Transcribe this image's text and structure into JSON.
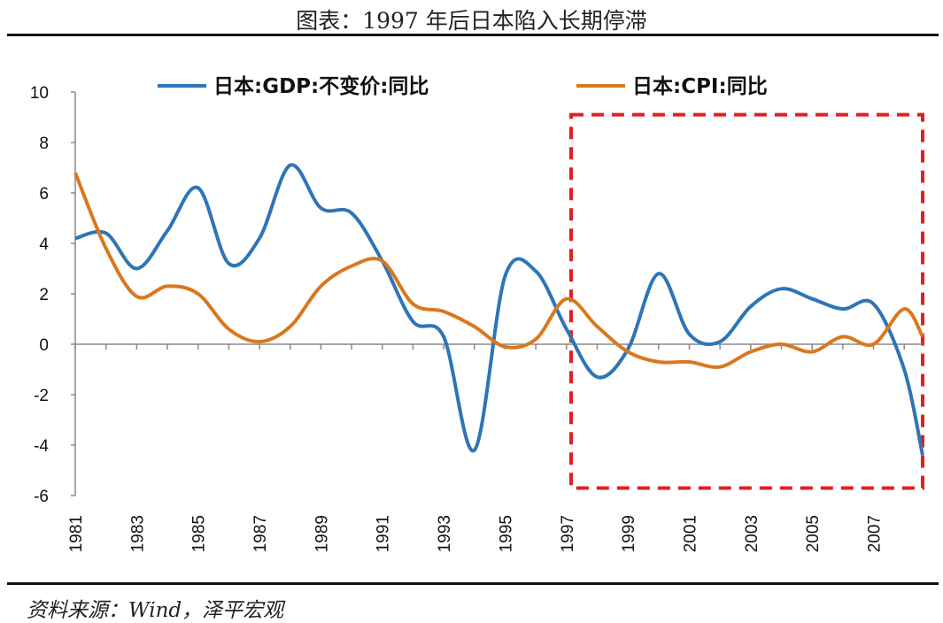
{
  "header": {
    "title": "图表：1997 年后日本陷入长期停滞"
  },
  "footer": {
    "source": "资料来源：Wind，泽平宏观"
  },
  "chart_data": {
    "type": "line",
    "x": [
      1981,
      1982,
      1983,
      1984,
      1985,
      1986,
      1987,
      1988,
      1989,
      1990,
      1991,
      1992,
      1993,
      1994,
      1995,
      1996,
      1997,
      1998,
      1999,
      2000,
      2001,
      2002,
      2003,
      2004,
      2005,
      2006,
      2007,
      2008,
      2008.6
    ],
    "x_tick_labels": [
      "1981",
      "1983",
      "1985",
      "1987",
      "1989",
      "1991",
      "1993",
      "1995",
      "1997",
      "1999",
      "2001",
      "2003",
      "2005",
      "2007"
    ],
    "y_tick_labels": [
      "10",
      "8",
      "6",
      "4",
      "2",
      "0",
      "-2",
      "-4",
      "-6"
    ],
    "ylim": [
      -6,
      10
    ],
    "series": [
      {
        "name": "日本:GDP:不变价:同比",
        "color": "#2E75B6",
        "values": [
          4.2,
          4.4,
          3.0,
          4.5,
          6.2,
          3.2,
          4.2,
          7.1,
          5.4,
          5.2,
          3.3,
          0.9,
          0.3,
          -4.2,
          2.7,
          2.9,
          0.6,
          -1.3,
          -0.2,
          2.8,
          0.4,
          0.1,
          1.5,
          2.2,
          1.8,
          1.4,
          1.6,
          -1.0,
          -4.4
        ]
      },
      {
        "name": "日本:CPI:同比",
        "color": "#D9781E",
        "values": [
          6.8,
          3.8,
          1.9,
          2.3,
          2.0,
          0.6,
          0.1,
          0.7,
          2.3,
          3.1,
          3.3,
          1.6,
          1.3,
          0.7,
          -0.1,
          0.2,
          1.8,
          0.7,
          -0.3,
          -0.7,
          -0.7,
          -0.9,
          -0.3,
          0.0,
          -0.3,
          0.3,
          0.0,
          1.4,
          0.3
        ]
      }
    ],
    "highlight": {
      "x_start": 1997.15,
      "x_end": 2008.6,
      "y_min": -5.7,
      "y_max": 9.1,
      "color": "#E02020",
      "style": "dashed"
    },
    "grid": false,
    "legend": "top"
  }
}
